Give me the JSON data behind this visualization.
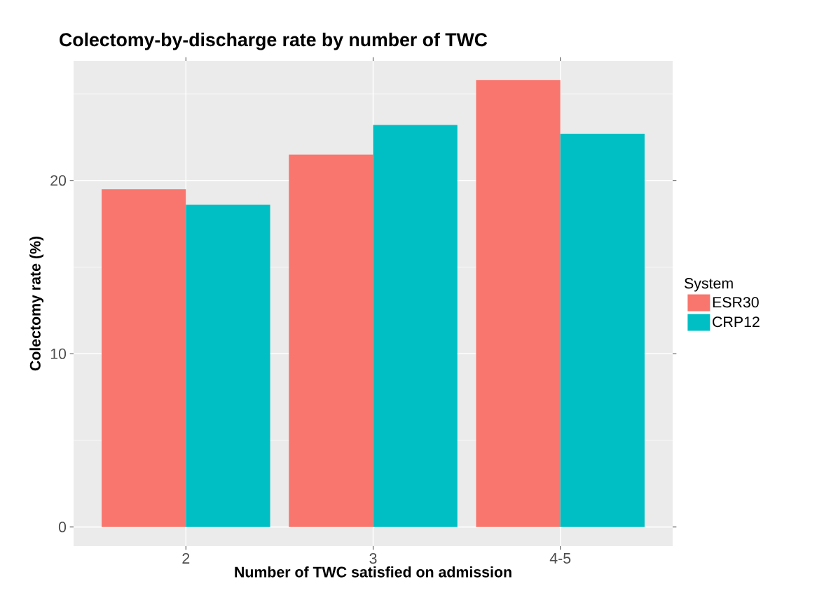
{
  "chart_data": {
    "type": "bar",
    "title": "Colectomy-by-discharge rate by number of TWC",
    "xlabel": "Number of TWC satisfied on admission",
    "ylabel": "Colectomy rate (%)",
    "legend_title": "System",
    "categories": [
      "2",
      "3",
      "4-5"
    ],
    "series": [
      {
        "name": "ESR30",
        "color": "#f8766d",
        "values": [
          19.5,
          21.5,
          25.8
        ]
      },
      {
        "name": "CRP12",
        "color": "#00bfc4",
        "values": [
          18.6,
          23.2,
          22.7
        ]
      }
    ],
    "ylim": [
      -1.1,
      26.9
    ],
    "yticks": [
      0,
      {
        "value": 5,
        "label": null
      },
      10,
      {
        "value": 15,
        "label": null
      },
      20,
      {
        "value": 25,
        "label": null
      }
    ],
    "grid": true,
    "legend": "right"
  }
}
